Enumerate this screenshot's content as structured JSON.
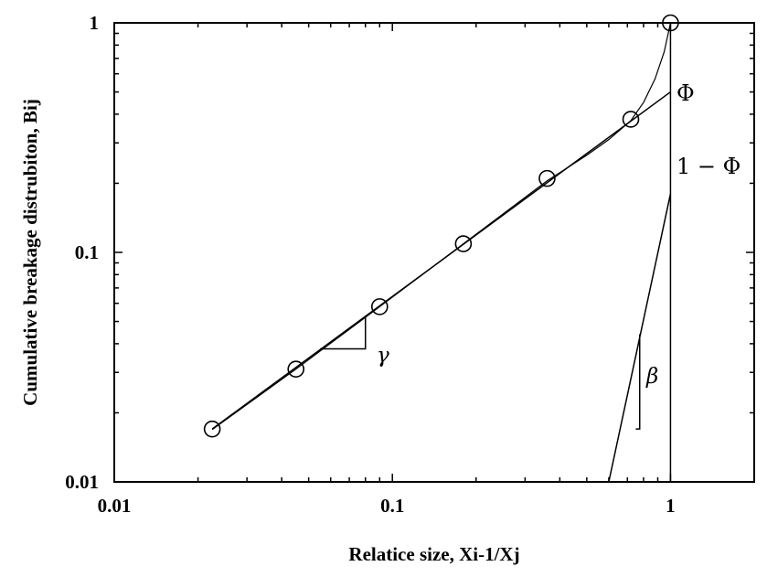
{
  "chart_data": {
    "type": "scatter",
    "xlabel": "Relatice size, Xi-1/Xj",
    "ylabel": "Cumulative breakage distrubiton, Bij",
    "xscale": "log",
    "yscale": "log",
    "xlim": [
      0.01,
      2
    ],
    "ylim": [
      0.01,
      1
    ],
    "x_ticks": [
      {
        "value": 0.01,
        "label": "0.01"
      },
      {
        "value": 0.1,
        "label": "0.1"
      },
      {
        "value": 1,
        "label": "1"
      }
    ],
    "y_ticks": [
      {
        "value": 0.01,
        "label": "0.01"
      },
      {
        "value": 0.1,
        "label": "0.1"
      },
      {
        "value": 1,
        "label": "1"
      }
    ],
    "grid": false,
    "series": [
      {
        "marker": "open-circle",
        "x": [
          0.0225,
          0.045,
          0.09,
          0.18,
          0.36,
          0.72,
          1.0
        ],
        "y": [
          0.017,
          0.031,
          0.058,
          0.109,
          0.21,
          0.38,
          1.0
        ]
      }
    ],
    "fit_curve": {
      "x": [
        0.0225,
        0.045,
        0.09,
        0.18,
        0.36,
        0.5,
        0.6,
        0.72,
        0.8,
        0.88,
        0.95,
        1.0
      ],
      "y": [
        0.0169,
        0.031,
        0.058,
        0.109,
        0.205,
        0.265,
        0.31,
        0.375,
        0.45,
        0.57,
        0.75,
        1.0
      ]
    },
    "gamma_line": {
      "x": [
        0.0225,
        1.0
      ],
      "y": [
        0.017,
        0.5
      ]
    },
    "beta_line": {
      "x": [
        0.6,
        1.0
      ],
      "y": [
        0.01,
        0.18
      ]
    },
    "gamma_triangle": {
      "x": [
        0.055,
        0.08
      ],
      "y": [
        0.038,
        0.053
      ]
    },
    "beta_triangle": {
      "x": [
        0.75,
        0.775
      ],
      "y": [
        0.017,
        0.044
      ]
    },
    "annotations": {
      "phi": "Φ",
      "one_minus_phi": "1 − Φ",
      "gamma": "γ",
      "beta": "β"
    }
  }
}
